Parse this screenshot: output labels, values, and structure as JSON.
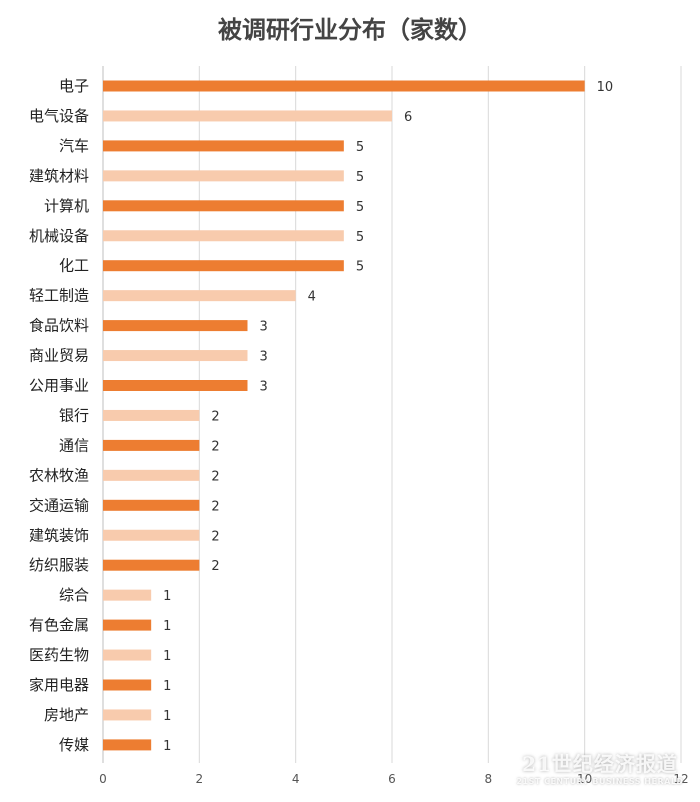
{
  "chart_data": {
    "type": "bar",
    "orientation": "horizontal",
    "title": "被调研行业分布（家数）",
    "categories": [
      "电子",
      "电气设备",
      "汽车",
      "建筑材料",
      "计算机",
      "机械设备",
      "化工",
      "轻工制造",
      "食品饮料",
      "商业贸易",
      "公用事业",
      "银行",
      "通信",
      "农林牧渔",
      "交通运输",
      "建筑装饰",
      "纺织服装",
      "综合",
      "有色金属",
      "医药生物",
      "家用电器",
      "房地产",
      "传媒"
    ],
    "values": [
      10,
      6,
      5,
      5,
      5,
      5,
      5,
      4,
      3,
      3,
      3,
      2,
      2,
      2,
      2,
      2,
      2,
      1,
      1,
      1,
      1,
      1,
      1
    ],
    "xlim": [
      0,
      12
    ],
    "xticks": [
      0,
      2,
      4,
      6,
      8,
      10,
      12
    ],
    "grid": "vertical",
    "colors": [
      "#ed7d31",
      "#f8cbad"
    ],
    "color_pattern": "alternating"
  },
  "watermark": {
    "main": "21世纪经济报道",
    "sub": "21ST CENTURY BUSINESS HERALD"
  }
}
